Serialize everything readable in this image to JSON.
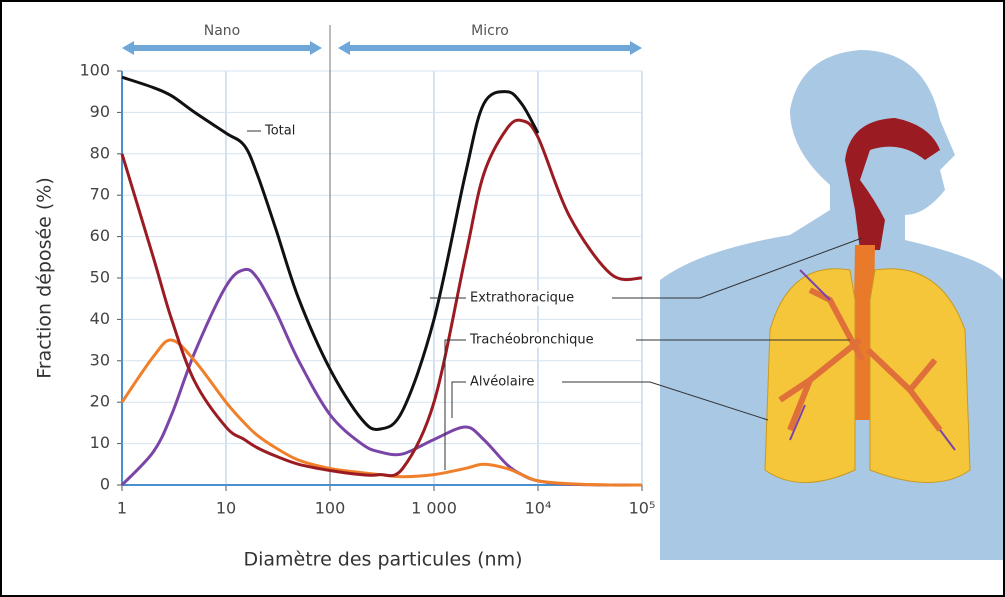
{
  "chart_data": {
    "type": "line",
    "x_label": "Diamètre des particules (nm)",
    "y_label": "Fraction déposée (%)",
    "regions": [
      "Nano",
      "Micro"
    ],
    "region_divider": 100,
    "x_log": true,
    "grid": true,
    "x": [
      1,
      2,
      3,
      5,
      10,
      15,
      20,
      30,
      50,
      100,
      200,
      300,
      500,
      1000,
      2000,
      3000,
      5000,
      7000,
      10000,
      20000,
      50000,
      100000
    ],
    "series": [
      {
        "name": "Total",
        "color": "#111111",
        "values": [
          98.5,
          96,
          94,
          90,
          85,
          82,
          75,
          62,
          45,
          28,
          16,
          13.5,
          18,
          40,
          75,
          92,
          95,
          92,
          85,
          null,
          null,
          null
        ]
      },
      {
        "name": "Extrathoracique",
        "color": "#9b1b22",
        "values": [
          80,
          55,
          40,
          25,
          14,
          11,
          9,
          7,
          5,
          3.5,
          2.5,
          2.5,
          4,
          20,
          55,
          75,
          86,
          88,
          84,
          65,
          51,
          50
        ]
      },
      {
        "name": "Trachéobronchique",
        "color": "#f07f2a",
        "values": [
          20,
          31,
          35,
          30,
          20,
          15,
          12,
          9,
          6,
          4,
          3,
          2.5,
          2,
          2.5,
          4,
          5,
          4,
          2.5,
          1,
          0.3,
          0,
          0
        ]
      },
      {
        "name": "Alvéolaire",
        "color": "#7b45a8",
        "values": [
          0,
          8,
          17,
          32,
          48,
          52,
          50,
          42,
          30,
          17,
          10,
          8,
          7.5,
          11,
          14,
          11,
          5,
          2.5,
          1,
          0.2,
          0,
          0
        ]
      }
    ],
    "xlim": [
      1,
      100000
    ],
    "xticks": [
      1,
      10,
      100,
      {
        "value": 1000,
        "label": "1 000"
      },
      {
        "value": 10000,
        "label": "10⁴"
      },
      {
        "value": 100000,
        "label": "10⁵"
      }
    ],
    "ylim": [
      0,
      100
    ],
    "yticks": [
      0,
      10,
      20,
      30,
      40,
      50,
      60,
      70,
      80,
      90,
      100
    ]
  }
}
